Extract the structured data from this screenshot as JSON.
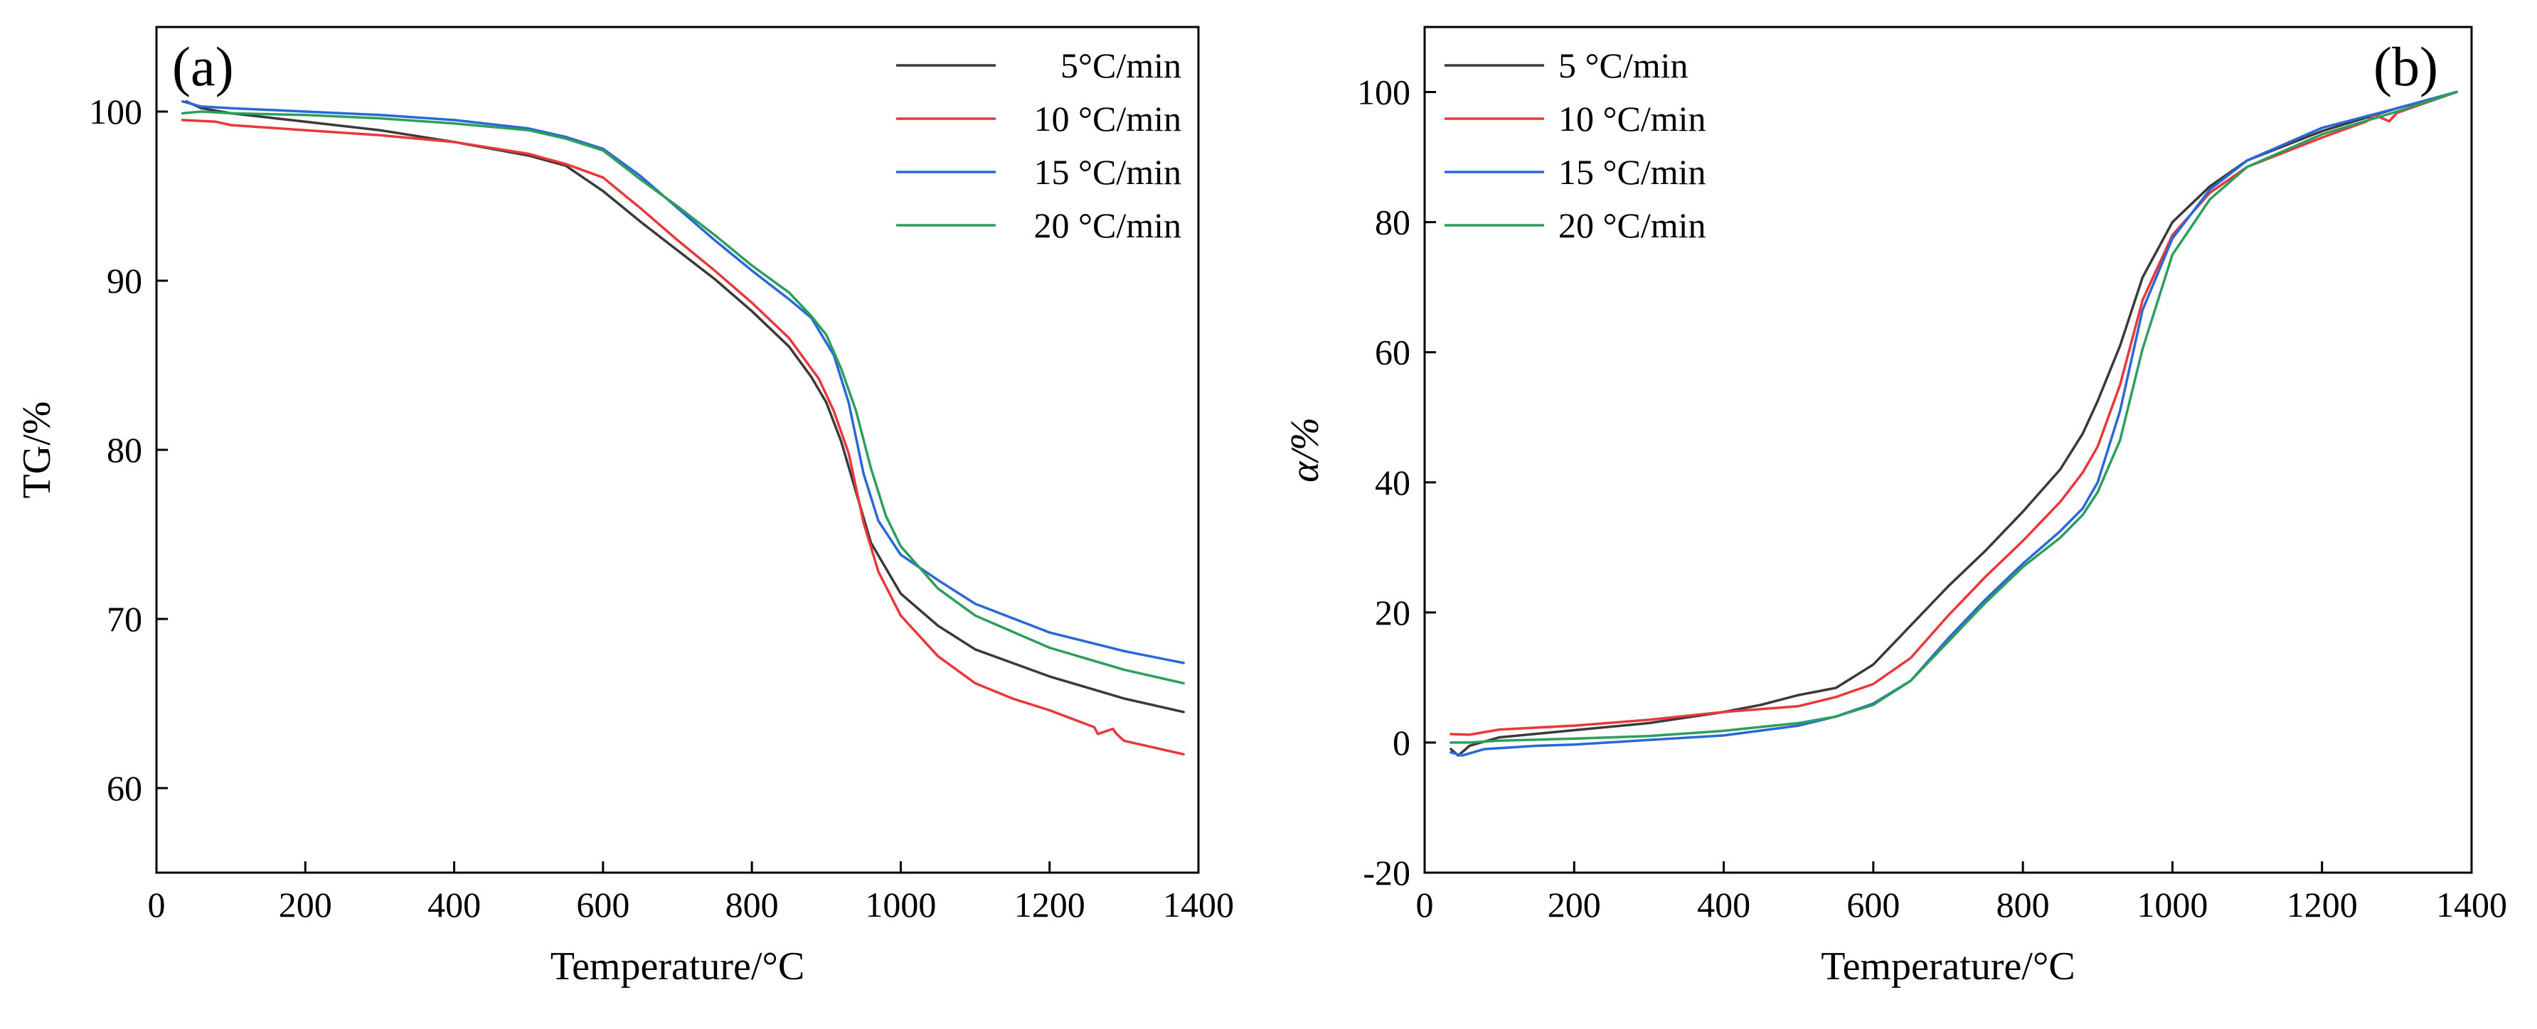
{
  "colors": {
    "5": "#3a3a3a",
    "10": "#e8383b",
    "15": "#2a68d8",
    "20": "#2e9e5c"
  },
  "chart_data": [
    {
      "type": "line",
      "panel_label": "(a)",
      "xlabel": "Temperature/°C",
      "ylabel": "TG/%",
      "xlim": [
        0,
        1400
      ],
      "ylim": [
        55,
        105
      ],
      "xticks": [
        0,
        200,
        400,
        600,
        800,
        1000,
        1200,
        1400
      ],
      "yticks": [
        60,
        70,
        80,
        90,
        100
      ],
      "legend_position": "top-right",
      "series": [
        {
          "name": "5°C/min",
          "color_key": "5",
          "points": [
            [
              40,
              100.6
            ],
            [
              60,
              100.2
            ],
            [
              100,
              99.9
            ],
            [
              200,
              99.4
            ],
            [
              300,
              98.9
            ],
            [
              400,
              98.2
            ],
            [
              500,
              97.4
            ],
            [
              550,
              96.8
            ],
            [
              600,
              95.3
            ],
            [
              650,
              93.5
            ],
            [
              700,
              91.8
            ],
            [
              750,
              90.1
            ],
            [
              800,
              88.2
            ],
            [
              850,
              86.1
            ],
            [
              880,
              84.3
            ],
            [
              900,
              82.8
            ],
            [
              920,
              80.5
            ],
            [
              940,
              77.5
            ],
            [
              960,
              74.5
            ],
            [
              1000,
              71.5
            ],
            [
              1050,
              69.6
            ],
            [
              1100,
              68.2
            ],
            [
              1200,
              66.6
            ],
            [
              1300,
              65.3
            ],
            [
              1380,
              64.5
            ]
          ]
        },
        {
          "name": "10 °C/min",
          "color_key": "10",
          "points": [
            [
              35,
              99.5
            ],
            [
              80,
              99.4
            ],
            [
              100,
              99.2
            ],
            [
              200,
              98.9
            ],
            [
              300,
              98.6
            ],
            [
              400,
              98.2
            ],
            [
              500,
              97.5
            ],
            [
              550,
              96.9
            ],
            [
              600,
              96.1
            ],
            [
              650,
              94.3
            ],
            [
              700,
              92.4
            ],
            [
              750,
              90.6
            ],
            [
              800,
              88.7
            ],
            [
              850,
              86.6
            ],
            [
              890,
              84.2
            ],
            [
              910,
              82.3
            ],
            [
              930,
              79.8
            ],
            [
              950,
              75.7
            ],
            [
              970,
              72.8
            ],
            [
              1000,
              70.2
            ],
            [
              1050,
              67.8
            ],
            [
              1100,
              66.2
            ],
            [
              1150,
              65.3
            ],
            [
              1200,
              64.6
            ],
            [
              1260,
              63.6
            ],
            [
              1265,
              63.2
            ],
            [
              1285,
              63.5
            ],
            [
              1290,
              63.2
            ],
            [
              1300,
              62.8
            ],
            [
              1380,
              62.0
            ]
          ]
        },
        {
          "name": "15 °C/min",
          "color_key": "15",
          "points": [
            [
              35,
              100.6
            ],
            [
              60,
              100.3
            ],
            [
              100,
              100.2
            ],
            [
              200,
              100.0
            ],
            [
              300,
              99.8
            ],
            [
              400,
              99.5
            ],
            [
              500,
              99.0
            ],
            [
              550,
              98.5
            ],
            [
              600,
              97.8
            ],
            [
              650,
              96.2
            ],
            [
              700,
              94.3
            ],
            [
              750,
              92.4
            ],
            [
              800,
              90.6
            ],
            [
              850,
              88.9
            ],
            [
              880,
              87.8
            ],
            [
              910,
              85.6
            ],
            [
              930,
              82.8
            ],
            [
              950,
              78.6
            ],
            [
              970,
              75.8
            ],
            [
              1000,
              73.8
            ],
            [
              1050,
              72.3
            ],
            [
              1100,
              70.9
            ],
            [
              1200,
              69.2
            ],
            [
              1300,
              68.1
            ],
            [
              1380,
              67.4
            ]
          ]
        },
        {
          "name": "20 °C/min",
          "color_key": "20",
          "points": [
            [
              35,
              99.9
            ],
            [
              60,
              100.0
            ],
            [
              100,
              99.9
            ],
            [
              200,
              99.8
            ],
            [
              300,
              99.6
            ],
            [
              400,
              99.3
            ],
            [
              500,
              98.9
            ],
            [
              550,
              98.4
            ],
            [
              600,
              97.7
            ],
            [
              650,
              96.0
            ],
            [
              700,
              94.4
            ],
            [
              750,
              92.7
            ],
            [
              800,
              90.9
            ],
            [
              850,
              89.3
            ],
            [
              880,
              87.9
            ],
            [
              900,
              86.8
            ],
            [
              920,
              84.8
            ],
            [
              940,
              82.3
            ],
            [
              960,
              78.9
            ],
            [
              980,
              76.1
            ],
            [
              1000,
              74.3
            ],
            [
              1050,
              71.8
            ],
            [
              1100,
              70.2
            ],
            [
              1200,
              68.3
            ],
            [
              1300,
              67.0
            ],
            [
              1380,
              66.2
            ]
          ]
        }
      ]
    },
    {
      "type": "line",
      "panel_label": "(b)",
      "xlabel": "Temperature/°C",
      "ylabel": "α/%",
      "xlim": [
        0,
        1400
      ],
      "ylim": [
        -20,
        110
      ],
      "xticks": [
        0,
        200,
        400,
        600,
        800,
        1000,
        1200,
        1400
      ],
      "yticks": [
        -20,
        0,
        20,
        40,
        60,
        80,
        100
      ],
      "legend_position": "top-left",
      "series": [
        {
          "name": "5 °C/min",
          "color_key": "5",
          "points": [
            [
              35,
              -1.0
            ],
            [
              45,
              -2.0
            ],
            [
              60,
              -0.5
            ],
            [
              100,
              0.8
            ],
            [
              200,
              1.9
            ],
            [
              300,
              3.0
            ],
            [
              400,
              4.7
            ],
            [
              450,
              5.8
            ],
            [
              500,
              7.3
            ],
            [
              550,
              8.4
            ],
            [
              600,
              12.0
            ],
            [
              650,
              18.0
            ],
            [
              700,
              24.0
            ],
            [
              750,
              29.5
            ],
            [
              800,
              35.5
            ],
            [
              850,
              42.0
            ],
            [
              880,
              47.5
            ],
            [
              900,
              52.5
            ],
            [
              930,
              61.0
            ],
            [
              960,
              71.5
            ],
            [
              1000,
              80.0
            ],
            [
              1050,
              85.5
            ],
            [
              1100,
              89.5
            ],
            [
              1200,
              94.0
            ],
            [
              1300,
              97.5
            ],
            [
              1380,
              100.0
            ]
          ]
        },
        {
          "name": "10 °C/min",
          "color_key": "10",
          "points": [
            [
              35,
              1.3
            ],
            [
              60,
              1.2
            ],
            [
              100,
              2.0
            ],
            [
              200,
              2.6
            ],
            [
              300,
              3.5
            ],
            [
              400,
              4.7
            ],
            [
              500,
              5.6
            ],
            [
              550,
              7.0
            ],
            [
              600,
              9.0
            ],
            [
              650,
              13.0
            ],
            [
              700,
              19.5
            ],
            [
              750,
              25.5
            ],
            [
              800,
              31.0
            ],
            [
              850,
              37.0
            ],
            [
              880,
              41.5
            ],
            [
              900,
              45.5
            ],
            [
              930,
              55.0
            ],
            [
              960,
              68.0
            ],
            [
              1000,
              78.0
            ],
            [
              1050,
              84.5
            ],
            [
              1100,
              88.5
            ],
            [
              1200,
              93.0
            ],
            [
              1260,
              95.5
            ],
            [
              1270,
              96.5
            ],
            [
              1290,
              95.5
            ],
            [
              1300,
              96.8
            ],
            [
              1380,
              100.0
            ]
          ]
        },
        {
          "name": "15 °C/min",
          "color_key": "15",
          "points": [
            [
              35,
              -1.5
            ],
            [
              50,
              -2.0
            ],
            [
              80,
              -1.0
            ],
            [
              150,
              -0.5
            ],
            [
              200,
              -0.3
            ],
            [
              300,
              0.4
            ],
            [
              400,
              1.1
            ],
            [
              500,
              2.6
            ],
            [
              550,
              4.0
            ],
            [
              600,
              6.0
            ],
            [
              650,
              9.5
            ],
            [
              700,
              16.0
            ],
            [
              750,
              22.0
            ],
            [
              800,
              27.5
            ],
            [
              850,
              32.5
            ],
            [
              880,
              36.0
            ],
            [
              900,
              40.0
            ],
            [
              930,
              51.0
            ],
            [
              960,
              66.5
            ],
            [
              1000,
              77.5
            ],
            [
              1050,
              85.0
            ],
            [
              1100,
              89.5
            ],
            [
              1200,
              94.5
            ],
            [
              1300,
              97.5
            ],
            [
              1380,
              100.0
            ]
          ]
        },
        {
          "name": "20 °C/min",
          "color_key": "20",
          "points": [
            [
              35,
              0.0
            ],
            [
              60,
              0.0
            ],
            [
              100,
              0.3
            ],
            [
              200,
              0.6
            ],
            [
              300,
              1.0
            ],
            [
              400,
              1.8
            ],
            [
              500,
              3.0
            ],
            [
              550,
              4.0
            ],
            [
              600,
              5.8
            ],
            [
              650,
              9.5
            ],
            [
              700,
              15.5
            ],
            [
              750,
              21.5
            ],
            [
              800,
              27.0
            ],
            [
              850,
              31.5
            ],
            [
              880,
              35.0
            ],
            [
              900,
              38.5
            ],
            [
              930,
              46.5
            ],
            [
              960,
              60.5
            ],
            [
              1000,
              75.0
            ],
            [
              1050,
              83.5
            ],
            [
              1100,
              88.5
            ],
            [
              1200,
              93.5
            ],
            [
              1300,
              97.0
            ],
            [
              1380,
              100.0
            ]
          ]
        }
      ]
    }
  ]
}
